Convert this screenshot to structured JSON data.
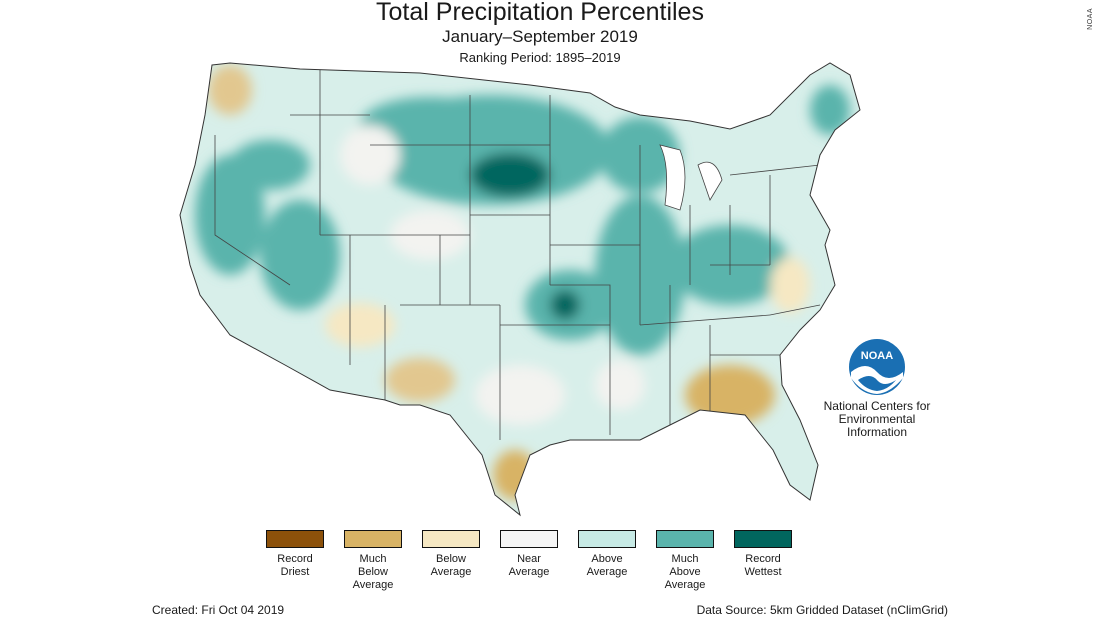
{
  "header": {
    "title": "Total Precipitation Percentiles",
    "subtitle": "January–September 2019",
    "ranking_period": "Ranking Period: 1895–2019"
  },
  "watermark": "NOAA",
  "logo": {
    "text": "NOAA",
    "colors": {
      "primary": "#1a6fb3",
      "light": "#ffffff"
    }
  },
  "agency": {
    "name": "National Centers for Environmental Information"
  },
  "legend": {
    "items": [
      {
        "label": "Record\nDriest",
        "color": "#8c510a"
      },
      {
        "label": "Much\nBelow\nAverage",
        "color": "#d8b365"
      },
      {
        "label": "Below\nAverage",
        "color": "#f6e8c3"
      },
      {
        "label": "Near\nAverage",
        "color": "#f5f5f5"
      },
      {
        "label": "Above\nAverage",
        "color": "#c7eae5"
      },
      {
        "label": "Much\nAbove\nAverage",
        "color": "#5ab4ac"
      },
      {
        "label": "Record\nWettest",
        "color": "#01665e"
      }
    ]
  },
  "footer": {
    "created": "Created: Fri Oct 04 2019",
    "source": "Data Source: 5km Gridded Dataset (nClimGrid)"
  }
}
